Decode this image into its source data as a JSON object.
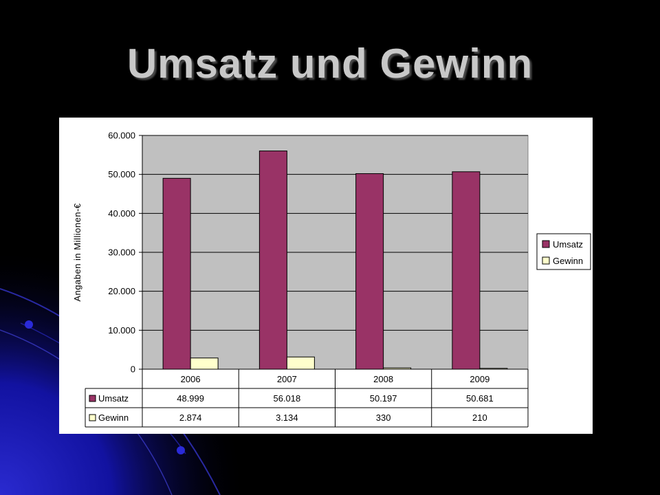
{
  "slide": {
    "title": "Umsatz und Gewinn"
  },
  "chart_data": {
    "type": "bar",
    "categories": [
      "2006",
      "2007",
      "2008",
      "2009"
    ],
    "series": [
      {
        "name": "Umsatz",
        "values": [
          48999,
          56018,
          50197,
          50681
        ],
        "labels": [
          "48.999",
          "56.018",
          "50.197",
          "50.681"
        ]
      },
      {
        "name": "Gewinn",
        "values": [
          2874,
          3134,
          330,
          210
        ],
        "labels": [
          "2.874",
          "3.134",
          "330",
          "210"
        ]
      }
    ],
    "ylabel": "Angaben in Millionen-€",
    "ylim": [
      0,
      60000
    ],
    "yticks": [
      0,
      10000,
      20000,
      30000,
      40000,
      50000,
      60000
    ],
    "ytick_labels": [
      "0",
      "10.000",
      "20.000",
      "30.000",
      "40.000",
      "50.000",
      "60.000"
    ],
    "grid": true,
    "legend": "right",
    "data_table": true
  },
  "colors": {
    "umsatz": "#993366",
    "gewinn": "#ffffcc",
    "plot_background": "#c0c0c0",
    "slide_accent": "#1a1aa0"
  }
}
